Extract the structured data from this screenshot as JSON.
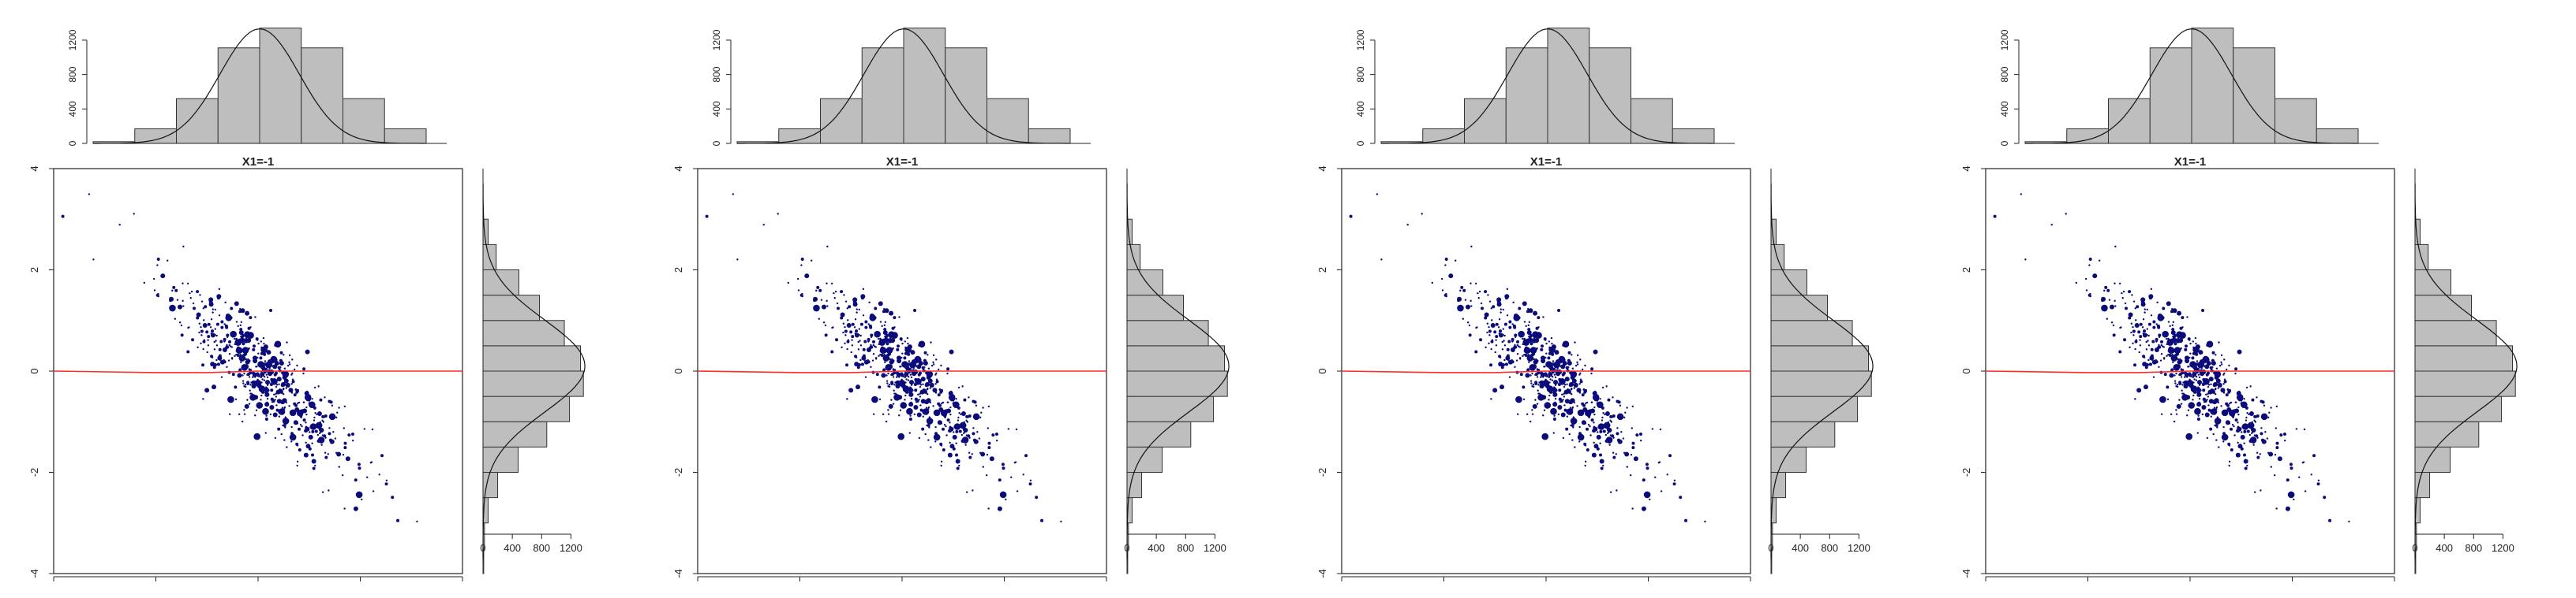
{
  "figure": {
    "panel_count": 4,
    "colors": {
      "points": "#0b0b7a",
      "loess_line": "#ff2a2a",
      "bars_fill": "#bebebe",
      "bars_stroke": "#333333",
      "axis": "#333333"
    },
    "icons": []
  },
  "chart_data": [
    {
      "type": "scatter",
      "title": "X1=-1",
      "xlabel": "",
      "ylabel": "",
      "ylim": [
        -4,
        4
      ],
      "y_ticks": [
        "-4",
        "-2",
        "0",
        "2",
        "4"
      ],
      "grid": false,
      "marginal_top_hist": {
        "type": "bar",
        "ylim": [
          0,
          1300
        ],
        "y_ticks": [
          "0",
          "400",
          "800",
          "1200"
        ],
        "bins": [
          -4,
          -3,
          -2,
          -1,
          0,
          1,
          2,
          3,
          4
        ],
        "values": [
          20,
          170,
          520,
          1110,
          1340,
          1110,
          520,
          170
        ]
      },
      "marginal_right_hist": {
        "type": "bar",
        "orientation": "horizontal",
        "xlim": [
          0,
          1400
        ],
        "x_ticks": [
          "0",
          "400",
          "800",
          "1200"
        ],
        "bins": [
          -4,
          -3.5,
          -3,
          -2.5,
          -2,
          -1.5,
          -1,
          -0.5,
          0,
          0.5,
          1,
          1.5,
          2,
          2.5,
          3
        ],
        "values": [
          10,
          20,
          70,
          200,
          480,
          870,
          1180,
          1370,
          1330,
          1110,
          770,
          490,
          180,
          70
        ],
        "smooth_curve": true
      },
      "smooth_line": [
        [
          -4,
          0.0
        ],
        [
          -2,
          -0.03
        ],
        [
          -1,
          -0.03
        ],
        [
          0,
          0.0
        ],
        [
          2,
          0.0
        ],
        [
          4,
          0.0
        ]
      ]
    },
    {
      "type": "scatter",
      "title": "X1=-1",
      "xlabel": "",
      "ylabel": "",
      "ylim": [
        -4,
        4
      ],
      "y_ticks": [
        "-4",
        "-2",
        "0",
        "2",
        "4"
      ],
      "grid": false,
      "marginal_top_hist": {
        "type": "bar",
        "ylim": [
          0,
          1300
        ],
        "y_ticks": [
          "0",
          "400",
          "800",
          "1200"
        ],
        "bins": [
          -4,
          -3,
          -2,
          -1,
          0,
          1,
          2,
          3,
          4
        ],
        "values": [
          20,
          170,
          520,
          1110,
          1340,
          1110,
          520,
          170
        ]
      },
      "marginal_right_hist": {
        "type": "bar",
        "orientation": "horizontal",
        "xlim": [
          0,
          1400
        ],
        "x_ticks": [
          "0",
          "400",
          "800",
          "1200"
        ],
        "bins": [
          -4,
          -3.5,
          -3,
          -2.5,
          -2,
          -1.5,
          -1,
          -0.5,
          0,
          0.5,
          1,
          1.5,
          2,
          2.5,
          3
        ],
        "values": [
          10,
          20,
          70,
          200,
          480,
          870,
          1180,
          1370,
          1330,
          1110,
          770,
          490,
          180,
          70
        ],
        "smooth_curve": true
      },
      "smooth_line": [
        [
          -4,
          0.0
        ],
        [
          -2,
          -0.03
        ],
        [
          -1,
          -0.03
        ],
        [
          0,
          0.0
        ],
        [
          2,
          0.0
        ],
        [
          4,
          0.0
        ]
      ]
    },
    {
      "type": "scatter",
      "title": "X1=-1",
      "xlabel": "",
      "ylabel": "",
      "ylim": [
        -4,
        4
      ],
      "y_ticks": [
        "-4",
        "-2",
        "0",
        "2",
        "4"
      ],
      "grid": false,
      "marginal_top_hist": {
        "type": "bar",
        "ylim": [
          0,
          1300
        ],
        "y_ticks": [
          "0",
          "400",
          "800",
          "1200"
        ],
        "bins": [
          -4,
          -3,
          -2,
          -1,
          0,
          1,
          2,
          3,
          4
        ],
        "values": [
          20,
          170,
          520,
          1110,
          1340,
          1110,
          520,
          170
        ]
      },
      "marginal_right_hist": {
        "type": "bar",
        "orientation": "horizontal",
        "xlim": [
          0,
          1400
        ],
        "x_ticks": [
          "0",
          "400",
          "800",
          "1200"
        ],
        "bins": [
          -4,
          -3.5,
          -3,
          -2.5,
          -2,
          -1.5,
          -1,
          -0.5,
          0,
          0.5,
          1,
          1.5,
          2,
          2.5,
          3
        ],
        "values": [
          10,
          20,
          70,
          200,
          480,
          870,
          1180,
          1370,
          1330,
          1110,
          770,
          490,
          180,
          70
        ],
        "smooth_curve": true
      },
      "smooth_line": [
        [
          -4,
          0.0
        ],
        [
          -2,
          -0.03
        ],
        [
          -1,
          -0.03
        ],
        [
          0,
          0.0
        ],
        [
          2,
          0.0
        ],
        [
          4,
          0.0
        ]
      ]
    },
    {
      "type": "scatter",
      "title": "X1=-1",
      "xlabel": "",
      "ylabel": "",
      "ylim": [
        -4,
        4
      ],
      "y_ticks": [
        "-4",
        "-2",
        "0",
        "2",
        "4"
      ],
      "grid": false,
      "marginal_top_hist": {
        "type": "bar",
        "ylim": [
          0,
          1300
        ],
        "y_ticks": [
          "0",
          "400",
          "800",
          "1200"
        ],
        "bins": [
          -4,
          -3,
          -2,
          -1,
          0,
          1,
          2,
          3,
          4
        ],
        "values": [
          20,
          170,
          520,
          1110,
          1340,
          1110,
          520,
          170
        ]
      },
      "marginal_right_hist": {
        "type": "bar",
        "orientation": "horizontal",
        "xlim": [
          0,
          1400
        ],
        "x_ticks": [
          "0",
          "400",
          "800",
          "1200"
        ],
        "bins": [
          -4,
          -3.5,
          -3,
          -2.5,
          -2,
          -1.5,
          -1,
          -0.5,
          0,
          0.5,
          1,
          1.5,
          2,
          2.5,
          3
        ],
        "values": [
          10,
          20,
          70,
          200,
          480,
          870,
          1180,
          1370,
          1330,
          1110,
          770,
          490,
          180,
          70
        ],
        "smooth_curve": true
      },
      "smooth_line": [
        [
          -4,
          0.0
        ],
        [
          -2,
          -0.03
        ],
        [
          -1,
          -0.03
        ],
        [
          0,
          0.0
        ],
        [
          2,
          0.0
        ],
        [
          4,
          0.0
        ]
      ]
    }
  ]
}
